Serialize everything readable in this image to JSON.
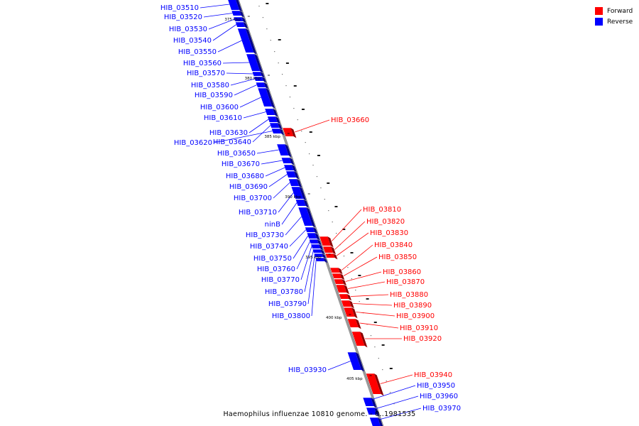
{
  "legend": {
    "forward_label": "Forward",
    "reverse_label": "Reverse",
    "forward_color": "#ff0000",
    "reverse_color": "#0000ff"
  },
  "genome_title": "Haemophilus influenzae 10810 genome. - 0..1981535",
  "scale_markers": [
    "375 kbp",
    "380 kbp",
    "385 kbp",
    "390 kbp",
    "395 kbp",
    "400 kbp",
    "405 kbp"
  ],
  "colors": {
    "axis": "#999999",
    "axis_edge": "#555555",
    "tick": "#000000"
  },
  "genes": [
    {
      "name": "HIB_03510",
      "strand": "reverse"
    },
    {
      "name": "HIB_03520",
      "strand": "reverse"
    },
    {
      "name": "HIB_03530",
      "strand": "reverse"
    },
    {
      "name": "HIB_03540",
      "strand": "reverse"
    },
    {
      "name": "HIB_03550",
      "strand": "reverse"
    },
    {
      "name": "HIB_03560",
      "strand": "reverse"
    },
    {
      "name": "HIB_03570",
      "strand": "reverse"
    },
    {
      "name": "HIB_03580",
      "strand": "reverse"
    },
    {
      "name": "HIB_03590",
      "strand": "reverse"
    },
    {
      "name": "HIB_03600",
      "strand": "reverse"
    },
    {
      "name": "HIB_03610",
      "strand": "reverse"
    },
    {
      "name": "HIB_03630",
      "strand": "reverse"
    },
    {
      "name": "HIB_03640",
      "strand": "reverse"
    },
    {
      "name": "HIB_03620",
      "strand": "reverse"
    },
    {
      "name": "HIB_03650",
      "strand": "reverse"
    },
    {
      "name": "HIB_03670",
      "strand": "reverse"
    },
    {
      "name": "HIB_03680",
      "strand": "reverse"
    },
    {
      "name": "HIB_03690",
      "strand": "reverse"
    },
    {
      "name": "HIB_03700",
      "strand": "reverse"
    },
    {
      "name": "HIB_03710",
      "strand": "reverse"
    },
    {
      "name": "ninB",
      "strand": "reverse"
    },
    {
      "name": "HIB_03730",
      "strand": "reverse"
    },
    {
      "name": "HIB_03740",
      "strand": "reverse"
    },
    {
      "name": "HIB_03750",
      "strand": "reverse"
    },
    {
      "name": "HIB_03760",
      "strand": "reverse"
    },
    {
      "name": "HIB_03770",
      "strand": "reverse"
    },
    {
      "name": "HIB_03780",
      "strand": "reverse"
    },
    {
      "name": "HIB_03790",
      "strand": "reverse"
    },
    {
      "name": "HIB_03800",
      "strand": "reverse"
    },
    {
      "name": "HIB_03930",
      "strand": "reverse"
    },
    {
      "name": "HIB_03660",
      "strand": "forward"
    },
    {
      "name": "HIB_03810",
      "strand": "forward"
    },
    {
      "name": "HIB_03820",
      "strand": "forward"
    },
    {
      "name": "HIB_03830",
      "strand": "forward"
    },
    {
      "name": "HIB_03840",
      "strand": "forward"
    },
    {
      "name": "HIB_03850",
      "strand": "forward"
    },
    {
      "name": "HIB_03860",
      "strand": "forward"
    },
    {
      "name": "HIB_03870",
      "strand": "forward"
    },
    {
      "name": "HIB_03880",
      "strand": "forward"
    },
    {
      "name": "HIB_03890",
      "strand": "forward"
    },
    {
      "name": "HIB_03900",
      "strand": "forward"
    },
    {
      "name": "HIB_03910",
      "strand": "forward"
    },
    {
      "name": "HIB_03920",
      "strand": "forward"
    },
    {
      "name": "HIB_03940",
      "strand": "forward"
    },
    {
      "name": "HIB_03950",
      "strand": "reverse"
    },
    {
      "name": "HIB_03960",
      "strand": "reverse"
    },
    {
      "name": "HIB_03970",
      "strand": "reverse"
    }
  ]
}
